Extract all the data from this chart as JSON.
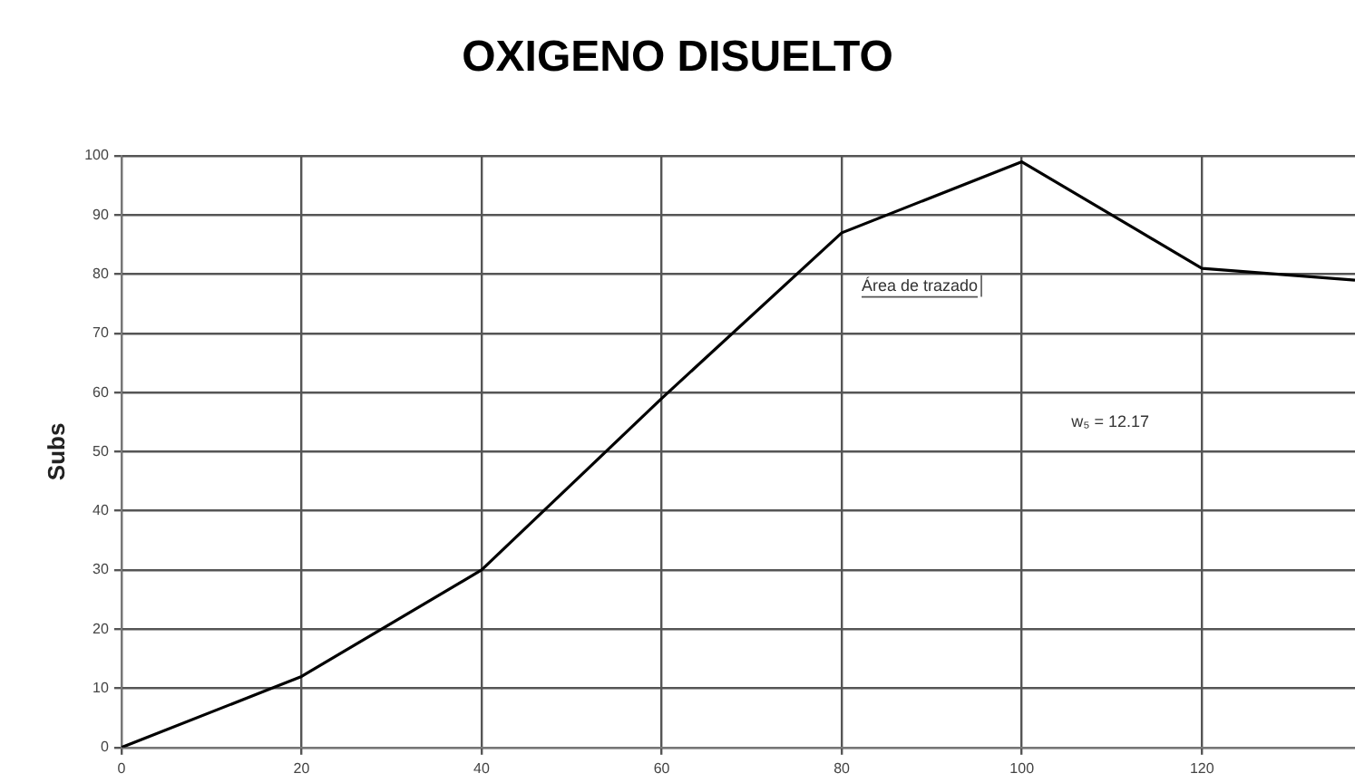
{
  "chart_data": {
    "type": "line",
    "title": "OXIGENO DISUELTO",
    "ylabel": "Subs",
    "x": [
      0,
      20,
      40,
      60,
      80,
      100,
      120,
      137
    ],
    "series": [
      {
        "color": "#000000",
        "values": [
          0,
          12,
          30,
          59,
          87,
          99,
          81,
          79
        ]
      }
    ],
    "xlim": [
      0,
      137
    ],
    "xticks": [
      0,
      20,
      40,
      60,
      80,
      100,
      120
    ],
    "ylim": [
      0,
      100
    ],
    "yticks": [
      0,
      10,
      20,
      30,
      40,
      50,
      60,
      70,
      80,
      90,
      100
    ],
    "grid": true,
    "legend": false,
    "marker": "none",
    "line_style": "solid",
    "annotations": [
      "Área de trazado",
      "w₅ = 12.17"
    ]
  }
}
